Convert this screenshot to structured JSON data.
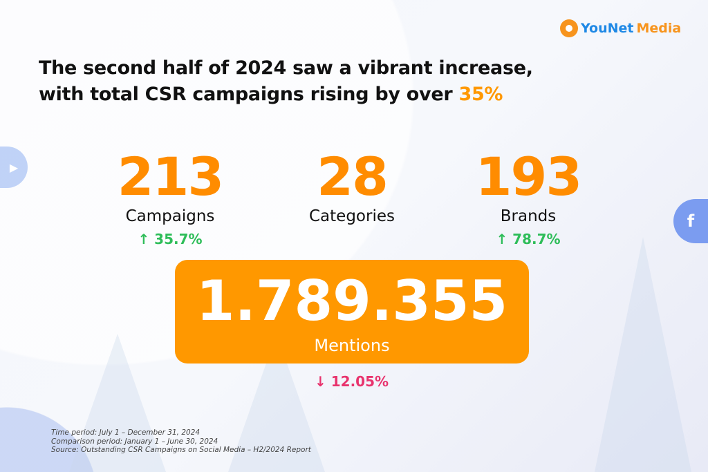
{
  "brand": {
    "logo_part1": "YouNet",
    "logo_part2": "Media"
  },
  "headline": {
    "line1": "The second half of 2024 saw a vibrant increase,",
    "line2_prefix": "with total CSR campaigns rising by over ",
    "line2_highlight": "35%"
  },
  "stats": [
    {
      "value": "213",
      "label": "Campaigns",
      "change": "35.7%",
      "direction": "up"
    },
    {
      "value": "28",
      "label": "Categories"
    },
    {
      "value": "193",
      "label": "Brands",
      "change": "78.7%",
      "direction": "up"
    }
  ],
  "mentions": {
    "value": "1.789.355",
    "label": "Mentions",
    "change": "12.05%",
    "direction": "down"
  },
  "notes": [
    "Time period: July 1 – December 31, 2024",
    "Comparison period: January 1 – June 30, 2024",
    "Source: Outstanding CSR Campaigns on Social Media – H2/2024 Report"
  ],
  "colors": {
    "accent": "#ff9800",
    "up": "#2ebd59",
    "down": "#e8336d"
  }
}
